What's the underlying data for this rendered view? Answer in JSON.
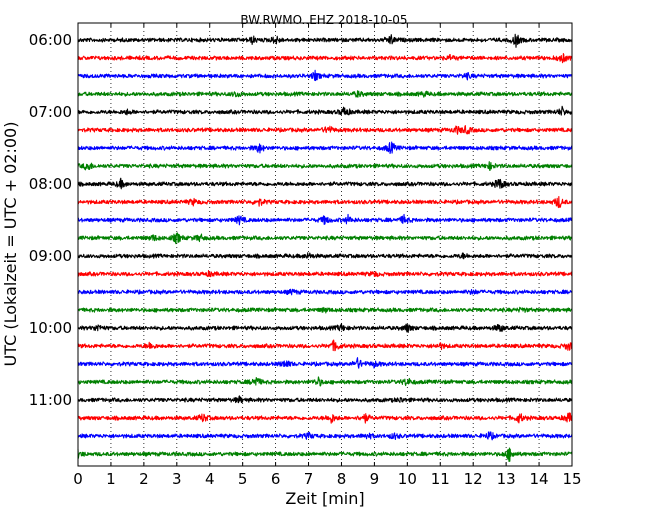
{
  "chart_data": {
    "type": "line",
    "title": "BW.RWMO..EHZ 2018-10-05",
    "xlabel": "Zeit  [min]",
    "ylabel": "UTC (Lokalzeit = UTC + 02:00)",
    "xlim": [
      0,
      15
    ],
    "x_ticks": [
      "0",
      "1",
      "2",
      "3",
      "4",
      "5",
      "6",
      "7",
      "8",
      "9",
      "10",
      "11",
      "12",
      "13",
      "14",
      "15"
    ],
    "y_tick_labels": [
      "06:00",
      "07:00",
      "08:00",
      "09:00",
      "10:00",
      "11:00"
    ],
    "grid": "vertical-dotted",
    "trace_interval_minutes": 15,
    "start_time": "06:00",
    "trace_count": 24,
    "colors": [
      "#000000",
      "#ff0000",
      "#0000ff",
      "#008000"
    ],
    "series": [
      {
        "start": "06:00",
        "events": [
          [
            5.3,
            0.5
          ],
          [
            6.0,
            0.6
          ],
          [
            9.5,
            0.7
          ],
          [
            13.3,
            0.9
          ]
        ]
      },
      {
        "start": "06:15",
        "events": [
          [
            14.7,
            0.7
          ],
          [
            11.3,
            0.3
          ]
        ]
      },
      {
        "start": "06:30",
        "events": [
          [
            7.2,
            0.6
          ],
          [
            11.8,
            0.4
          ]
        ]
      },
      {
        "start": "06:45",
        "events": [
          [
            4.8,
            0.4
          ],
          [
            8.5,
            0.4
          ],
          [
            10.5,
            0.3
          ]
        ]
      },
      {
        "start": "07:00",
        "events": [
          [
            8.1,
            0.8
          ],
          [
            14.7,
            0.6
          ],
          [
            1.5,
            0.3
          ]
        ]
      },
      {
        "start": "07:15",
        "events": [
          [
            7.6,
            0.6
          ],
          [
            11.5,
            0.5
          ],
          [
            11.8,
            0.6
          ]
        ]
      },
      {
        "start": "07:30",
        "events": [
          [
            5.5,
            0.7
          ],
          [
            9.5,
            0.9
          ]
        ]
      },
      {
        "start": "07:45",
        "events": [
          [
            0.3,
            0.7
          ],
          [
            12.5,
            0.5
          ]
        ]
      },
      {
        "start": "08:00",
        "events": [
          [
            1.3,
            0.6
          ],
          [
            12.8,
            0.9
          ]
        ]
      },
      {
        "start": "08:15",
        "events": [
          [
            3.5,
            0.4
          ],
          [
            5.5,
            0.5
          ],
          [
            14.6,
            0.9
          ]
        ]
      },
      {
        "start": "08:30",
        "events": [
          [
            4.9,
            0.6
          ],
          [
            7.5,
            0.6
          ],
          [
            8.2,
            0.6
          ],
          [
            9.9,
            0.6
          ]
        ]
      },
      {
        "start": "08:45",
        "events": [
          [
            2.3,
            0.4
          ],
          [
            3.0,
            0.8
          ],
          [
            3.7,
            0.5
          ]
        ]
      },
      {
        "start": "09:00",
        "events": [
          [
            7.0,
            0.4
          ],
          [
            11.7,
            0.3
          ]
        ]
      },
      {
        "start": "09:15",
        "events": [
          [
            4.0,
            0.3
          ],
          [
            9.0,
            0.3
          ]
        ]
      },
      {
        "start": "09:30",
        "events": [
          [
            6.5,
            0.3
          ],
          [
            12.0,
            0.3
          ]
        ]
      },
      {
        "start": "09:45",
        "events": [
          [
            7.5,
            0.3
          ],
          [
            13.5,
            0.3
          ]
        ]
      },
      {
        "start": "10:00",
        "events": [
          [
            0.6,
            0.5
          ],
          [
            8.0,
            0.5
          ],
          [
            10.0,
            0.6
          ],
          [
            12.8,
            0.6
          ]
        ]
      },
      {
        "start": "10:15",
        "events": [
          [
            2.2,
            0.5
          ],
          [
            7.8,
            0.9
          ],
          [
            11.0,
            0.4
          ],
          [
            14.9,
            0.6
          ]
        ]
      },
      {
        "start": "10:30",
        "events": [
          [
            6.3,
            0.6
          ],
          [
            8.5,
            0.8
          ],
          [
            9.0,
            0.4
          ]
        ]
      },
      {
        "start": "10:45",
        "events": [
          [
            5.4,
            0.8
          ],
          [
            7.3,
            0.6
          ],
          [
            10.0,
            0.6
          ]
        ]
      },
      {
        "start": "11:00",
        "events": [
          [
            4.9,
            0.4
          ],
          [
            9.8,
            0.3
          ]
        ]
      },
      {
        "start": "11:15",
        "events": [
          [
            3.8,
            0.6
          ],
          [
            7.7,
            0.7
          ],
          [
            8.7,
            0.7
          ],
          [
            13.4,
            0.7
          ],
          [
            14.9,
            0.7
          ]
        ]
      },
      {
        "start": "11:30",
        "events": [
          [
            7.0,
            0.4
          ],
          [
            8.8,
            0.4
          ],
          [
            9.6,
            0.4
          ],
          [
            12.5,
            0.6
          ]
        ]
      },
      {
        "start": "11:45",
        "events": [
          [
            13.1,
            1.0
          ],
          [
            0.0,
            0.5
          ]
        ]
      }
    ]
  }
}
